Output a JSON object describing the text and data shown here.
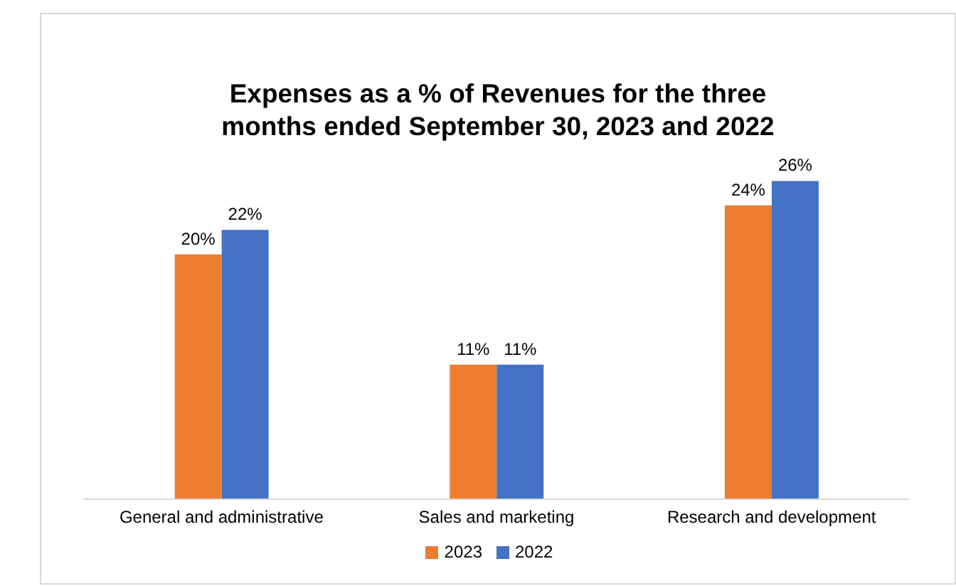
{
  "chart_data": {
    "type": "bar",
    "title": "Expenses as a % of Revenues for the three months ended September 30, 2023 and 2022",
    "categories": [
      "General and administrative",
      "Sales and marketing",
      "Research and development"
    ],
    "series": [
      {
        "name": "2023",
        "color": "#ed7d31",
        "values": [
          20,
          11,
          24
        ],
        "value_labels": [
          "20%",
          "11%",
          "24%"
        ]
      },
      {
        "name": "2022",
        "color": "#4472c4",
        "values": [
          22,
          11,
          26
        ],
        "value_labels": [
          "22%",
          "11%",
          "26%"
        ]
      }
    ],
    "legend": "bottom"
  }
}
